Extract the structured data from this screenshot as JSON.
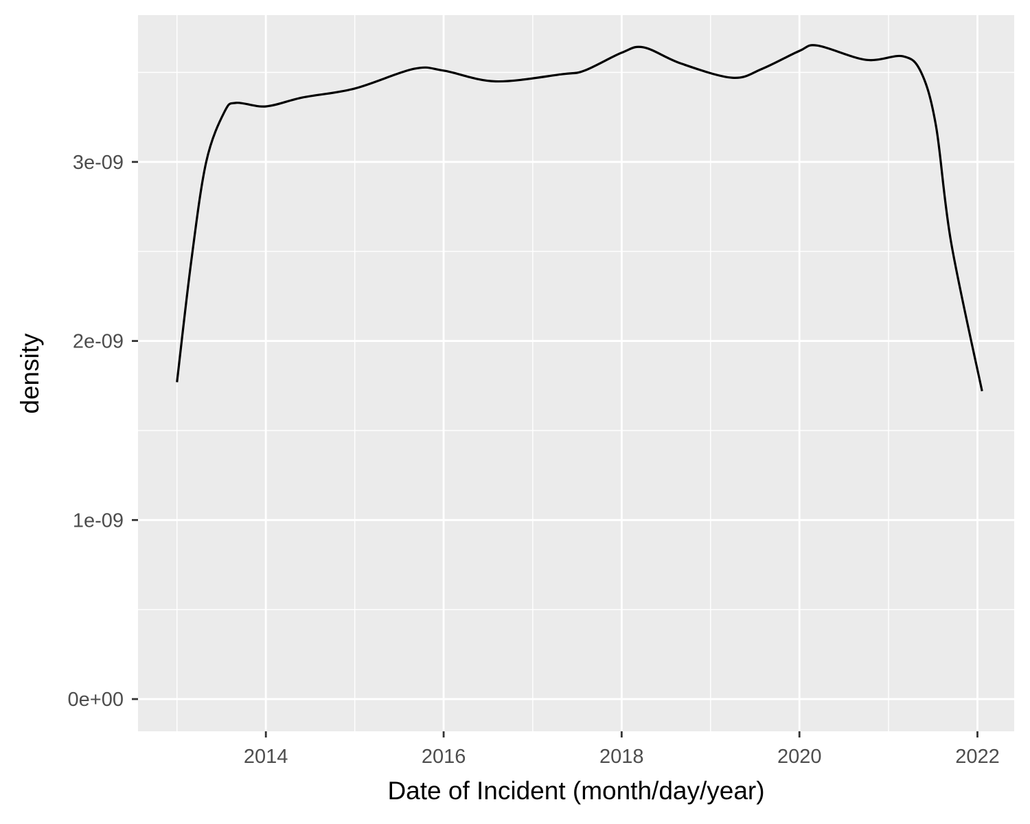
{
  "chart_data": {
    "type": "line",
    "title": "",
    "xlabel": "Date of Incident (month/day/year)",
    "ylabel": "density",
    "x_scale": "date",
    "xlim": [
      "2012-07-25",
      "2022-06-01"
    ],
    "ylim": [
      -1.8e-10,
      3.82e-09
    ],
    "x_ticks": [
      {
        "value": "2014-01-01",
        "label": "2014"
      },
      {
        "value": "2016-01-01",
        "label": "2016"
      },
      {
        "value": "2018-01-01",
        "label": "2018"
      },
      {
        "value": "2020-01-01",
        "label": "2020"
      },
      {
        "value": "2022-01-01",
        "label": "2022"
      }
    ],
    "x_minor_ticks": [
      "2013-01-01",
      "2015-01-01",
      "2017-01-01",
      "2019-01-01",
      "2021-01-01"
    ],
    "y_ticks": [
      {
        "value": 0,
        "label": "0e+00"
      },
      {
        "value": 1e-09,
        "label": "1e-09"
      },
      {
        "value": 2e-09,
        "label": "2e-09"
      },
      {
        "value": 3e-09,
        "label": "3e-09"
      }
    ],
    "y_minor_ticks": [
      5e-10,
      1.5e-09,
      2.5e-09,
      3.5e-09
    ],
    "grid": true,
    "legend": "none",
    "colors": {
      "panel": "#ebebeb",
      "grid": "#ffffff",
      "line": "#000000",
      "tick": "#333333"
    },
    "series": [
      {
        "color": "#000000",
        "points": [
          [
            "2013-01-01",
            1.77e-09
          ],
          [
            "2013-03-01",
            2.45e-09
          ],
          [
            "2013-05-01",
            3e-09
          ],
          [
            "2013-07-15",
            3.28e-09
          ],
          [
            "2013-09-01",
            3.33e-09
          ],
          [
            "2014-01-01",
            3.31e-09
          ],
          [
            "2014-06-01",
            3.36e-09
          ],
          [
            "2015-01-01",
            3.41e-09
          ],
          [
            "2015-09-01",
            3.52e-09
          ],
          [
            "2016-01-01",
            3.51e-09
          ],
          [
            "2016-08-01",
            3.45e-09
          ],
          [
            "2017-05-01",
            3.49e-09
          ],
          [
            "2017-08-01",
            3.51e-09
          ],
          [
            "2018-01-01",
            3.61e-09
          ],
          [
            "2018-04-01",
            3.64e-09
          ],
          [
            "2018-09-01",
            3.55e-09
          ],
          [
            "2019-04-01",
            3.47e-09
          ],
          [
            "2019-08-01",
            3.52e-09
          ],
          [
            "2020-01-01",
            3.62e-09
          ],
          [
            "2020-03-15",
            3.65e-09
          ],
          [
            "2020-10-01",
            3.57e-09
          ],
          [
            "2021-03-01",
            3.59e-09
          ],
          [
            "2021-05-15",
            3.5e-09
          ],
          [
            "2021-07-15",
            3.2e-09
          ],
          [
            "2021-09-15",
            2.55e-09
          ],
          [
            "2022-01-20",
            1.72e-09
          ]
        ]
      }
    ]
  }
}
